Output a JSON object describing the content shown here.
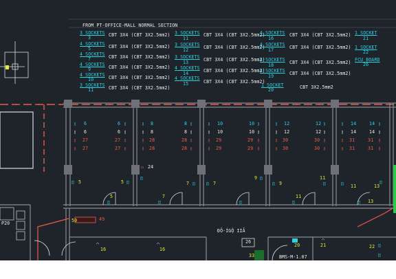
{
  "drawing": {
    "header_title": "FROM PT-OFFICE-MALL NORMAL SECTION",
    "sockets_col1": [
      "3 SOCKETS",
      "4 SOCKETS",
      "4 SOCKETS",
      "4 SOCKETS",
      "4 SOCKETS",
      "3 SOCKETS"
    ],
    "circuits_col1": [
      "3",
      "5",
      "7",
      "9",
      "10",
      "11"
    ],
    "cables_col1": [
      "CBT 3X4 (CBT 3X2.5mm2)",
      "CBT 3X4 (CBT 3X2.5mm2)",
      "CBT 3X4 (CBT 3X2.5mm2)",
      "CBT 3X4 (CBT 3X2.5mm2)",
      "CBT 3X4 (CBT 3X2.5mm2)",
      "CBT 3X4 (CBT 3X2.5mm2)"
    ],
    "sockets_col2": [
      "3 SOCKETS",
      "3 SOCKETS",
      "3 SOCKETS",
      "4 SOCKETS",
      "4 SOCKETS"
    ],
    "circuits_col2": [
      "11",
      "12",
      "13",
      "14",
      "15"
    ],
    "cables_col2": [
      "CBT 3X4 (CBT 3X2.5mm2)",
      "CBT 3X4 (CBT 3X2.5mm2)",
      "CBT 3X4 (CBT 3X2.5mm2)",
      "CBT 3X4 (CBT 3X2.5mm2)",
      "CBT 3X4 (CBT 3X2.5mm2)"
    ],
    "sockets_col3": [
      "4 SOCKETS",
      "4 SOCKETS",
      "4 SOCKETS",
      "4 SOCKETS",
      "1 SOCKET"
    ],
    "circuits_col3": [
      "16",
      "17",
      "18",
      "19",
      "20"
    ],
    "cables_col3": [
      "CBT 3X4 (CBT 3X2.5mm2)",
      "CBT 3X4 (CBT 3X2.5mm2)",
      "CBT 3X4 (CBT 3X2.5mm2)",
      "CBT 3X4 (CBT 3X2.5mm2)",
      "CBT 3X2.5mm2"
    ],
    "sockets_col4": [
      "1 SOCKET",
      "1 SOCKET",
      "FCU BOARD"
    ],
    "circuits_col4": [
      "21",
      "22",
      "26"
    ],
    "room_numbers": {
      "cyan": [
        "6",
        "6",
        "8",
        "8",
        "10",
        "10",
        "12",
        "12",
        "14",
        "14"
      ],
      "white": [
        "6",
        "6",
        "8",
        "8",
        "10",
        "10",
        "12",
        "12",
        "14",
        "14"
      ],
      "red27": [
        "27",
        "27",
        "28",
        "28",
        "29",
        "29",
        "30",
        "30",
        "31",
        "31"
      ],
      "red": [
        "27",
        "27",
        "28",
        "28",
        "29",
        "29",
        "30",
        "30",
        "31",
        "31"
      ],
      "low": [
        "5",
        "5",
        "7",
        "7",
        "9",
        "9",
        "11",
        "11",
        "13",
        "13"
      ],
      "misc": [
        "24",
        "5",
        "7",
        "11",
        "16",
        "16",
        "20",
        "21",
        "22",
        "26",
        "33",
        "49",
        "50",
        "P20"
      ]
    },
    "sub_labels": [
      "ĐÔ-ÍGỘ IIẢ",
      "BMS-M-1.07"
    ],
    "colors": {
      "background": "#1f242a",
      "cyan": "#27d6e6",
      "white": "#e9ecef",
      "yellow": "#e8ea3a",
      "red": "#ef5a4e",
      "grey": "#7e8288"
    }
  }
}
